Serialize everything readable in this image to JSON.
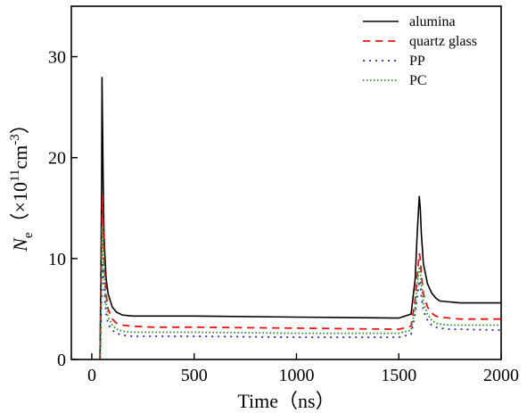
{
  "chart_data": {
    "type": "line",
    "xlabel": "Time（ns）",
    "ylabel_main": "N",
    "ylabel_sub": "e",
    "ylabel_unit_prefix": "（×10",
    "ylabel_exp": "11",
    "ylabel_unit_mid": "cm",
    "ylabel_unit_exp": "-3",
    "ylabel_unit_suffix": "）",
    "xlim": [
      -100,
      2000
    ],
    "ylim": [
      0,
      35
    ],
    "xticks": [
      0,
      500,
      1000,
      1500,
      2000
    ],
    "yticks": [
      0,
      10,
      20,
      30
    ],
    "legend_position": "top-right",
    "series": [
      {
        "name": "alumina",
        "color": "#000000",
        "dash": "solid",
        "x": [
          40,
          44,
          48,
          50,
          52,
          56,
          60,
          70,
          80,
          100,
          120,
          150,
          200,
          300,
          500,
          1000,
          1500,
          1560,
          1580,
          1590,
          1600,
          1605,
          1610,
          1620,
          1640,
          1660,
          1680,
          1700,
          1750,
          1800,
          2000
        ],
        "y": [
          0,
          8,
          18,
          28,
          24,
          17,
          12,
          8,
          6.5,
          5.2,
          4.7,
          4.4,
          4.3,
          4.3,
          4.3,
          4.2,
          4.1,
          4.5,
          8,
          12.5,
          16.2,
          15,
          12.5,
          9.5,
          7.5,
          6.6,
          6.1,
          5.8,
          5.7,
          5.6,
          5.6
        ]
      },
      {
        "name": "quartz glass",
        "color": "#ee1111",
        "dash": "8,6",
        "x": [
          40,
          44,
          48,
          52,
          56,
          60,
          70,
          80,
          100,
          120,
          150,
          200,
          300,
          500,
          1000,
          1500,
          1560,
          1580,
          1590,
          1600,
          1605,
          1610,
          1620,
          1640,
          1660,
          1680,
          1700,
          1750,
          1800,
          2000
        ],
        "y": [
          0,
          5,
          12,
          16.2,
          13,
          10,
          6.5,
          5,
          4,
          3.6,
          3.4,
          3.3,
          3.2,
          3.2,
          3.1,
          3.0,
          3.3,
          6,
          8.5,
          10.5,
          10,
          8.5,
          6.5,
          5.2,
          4.6,
          4.3,
          4.2,
          4.1,
          4.0,
          4.0
        ]
      },
      {
        "name": "PP",
        "color": "#2a2acc",
        "dash": "2,5",
        "x": [
          40,
          44,
          48,
          52,
          56,
          60,
          70,
          80,
          100,
          120,
          150,
          200,
          300,
          500,
          1000,
          1500,
          1560,
          1580,
          1590,
          1600,
          1605,
          1610,
          1620,
          1640,
          1660,
          1680,
          1700,
          1750,
          1800,
          2000
        ],
        "y": [
          0,
          3,
          7,
          10,
          8.5,
          7,
          4.5,
          3.5,
          2.9,
          2.6,
          2.4,
          2.3,
          2.3,
          2.3,
          2.2,
          2.2,
          2.5,
          4.5,
          6.2,
          7.8,
          7.4,
          6.2,
          4.8,
          3.9,
          3.4,
          3.2,
          3.1,
          3.0,
          3.0,
          2.9
        ]
      },
      {
        "name": "PC",
        "color": "#119911",
        "dash": "1.5,2.5",
        "x": [
          40,
          44,
          48,
          52,
          56,
          60,
          70,
          80,
          100,
          120,
          150,
          200,
          300,
          500,
          1000,
          1500,
          1560,
          1580,
          1590,
          1600,
          1605,
          1610,
          1620,
          1640,
          1660,
          1680,
          1700,
          1750,
          1800,
          2000
        ],
        "y": [
          0,
          4,
          9,
          13,
          11,
          8.5,
          5.5,
          4.2,
          3.4,
          3.0,
          2.8,
          2.7,
          2.7,
          2.7,
          2.6,
          2.6,
          2.9,
          5.2,
          7.4,
          9.2,
          8.8,
          7.4,
          5.6,
          4.5,
          3.9,
          3.6,
          3.5,
          3.4,
          3.4,
          3.4
        ]
      }
    ]
  }
}
